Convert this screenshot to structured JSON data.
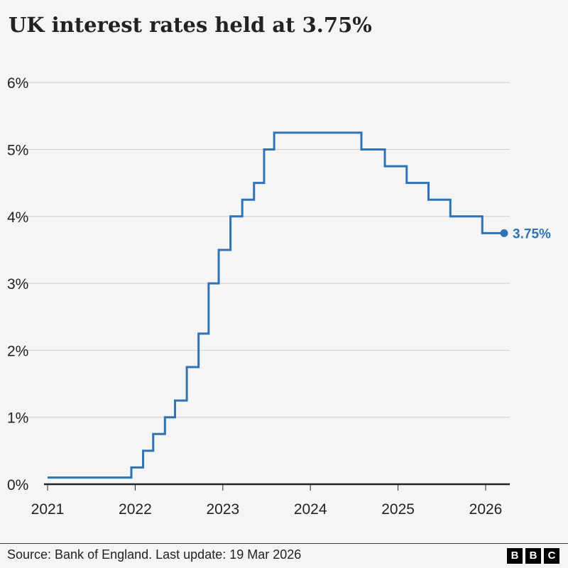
{
  "title": "UK interest rates held at 3.75%",
  "footer": {
    "source": "Source: Bank of England. Last update: 19 Mar 2026",
    "logo": "BBC"
  },
  "chart_data": {
    "type": "line",
    "step": true,
    "title": "UK interest rates held at 3.75%",
    "xlabel": "",
    "ylabel": "",
    "xlim": [
      "2021-01-01",
      "2026-03-19"
    ],
    "ylim": [
      0,
      6
    ],
    "grid": true,
    "x_ticks": [
      "2021",
      "2022",
      "2023",
      "2024",
      "2025",
      "2026"
    ],
    "y_ticks": [
      "0%",
      "1%",
      "2%",
      "3%",
      "4%",
      "5%",
      "6%"
    ],
    "line_color": "#2f73b5",
    "end_label": "3.75%",
    "points": [
      {
        "date": "2021-01-01",
        "value": 0.1
      },
      {
        "date": "2021-12-16",
        "value": 0.25
      },
      {
        "date": "2022-02-03",
        "value": 0.5
      },
      {
        "date": "2022-03-17",
        "value": 0.75
      },
      {
        "date": "2022-05-05",
        "value": 1.0
      },
      {
        "date": "2022-06-16",
        "value": 1.25
      },
      {
        "date": "2022-08-04",
        "value": 1.75
      },
      {
        "date": "2022-09-22",
        "value": 2.25
      },
      {
        "date": "2022-11-03",
        "value": 3.0
      },
      {
        "date": "2022-12-15",
        "value": 3.5
      },
      {
        "date": "2023-02-02",
        "value": 4.0
      },
      {
        "date": "2023-03-23",
        "value": 4.25
      },
      {
        "date": "2023-05-11",
        "value": 4.5
      },
      {
        "date": "2023-06-22",
        "value": 5.0
      },
      {
        "date": "2023-08-03",
        "value": 5.25
      },
      {
        "date": "2024-08-01",
        "value": 5.0
      },
      {
        "date": "2024-11-07",
        "value": 4.75
      },
      {
        "date": "2025-02-06",
        "value": 4.5
      },
      {
        "date": "2025-05-08",
        "value": 4.25
      },
      {
        "date": "2025-08-07",
        "value": 4.0
      },
      {
        "date": "2025-12-18",
        "value": 3.75
      },
      {
        "date": "2026-03-19",
        "value": 3.75
      }
    ]
  }
}
